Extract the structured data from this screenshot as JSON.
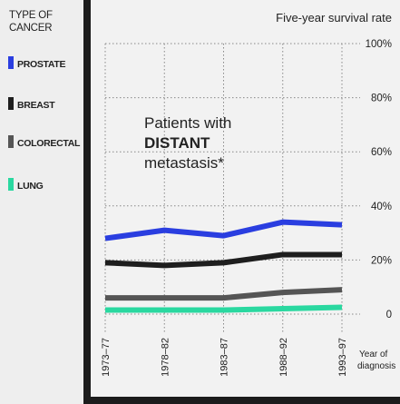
{
  "chart_data": {
    "type": "line",
    "title": "Five-year survival rate",
    "legend_title": [
      "TYPE OF",
      "CANCER"
    ],
    "legend_placement": "left",
    "x_axis_title": [
      "Year of",
      "diagnosis"
    ],
    "categories": [
      "1973–77",
      "1978–82",
      "1983–87",
      "1988–92",
      "1993–97"
    ],
    "y_ticks": [
      "0",
      "20%",
      "40%",
      "60%",
      "80%",
      "100%"
    ],
    "ylim": [
      0,
      100
    ],
    "grid": "vertical dotted",
    "annotation": {
      "line1": "Patients with",
      "line2": "DISTANT",
      "line3": "metastasis*"
    },
    "series": [
      {
        "name": "PROSTATE",
        "color": "#2a3ee0",
        "values": [
          28,
          31,
          29,
          34,
          33
        ]
      },
      {
        "name": "BREAST",
        "color": "#1e1e1e",
        "values": [
          19,
          18,
          19,
          22,
          22
        ]
      },
      {
        "name": "COLORECTAL",
        "color": "#555555",
        "values": [
          6,
          6,
          6,
          8,
          9
        ]
      },
      {
        "name": "LUNG",
        "color": "#2ad8a0",
        "values": [
          1.5,
          1.5,
          1.5,
          2,
          2.5
        ]
      }
    ]
  }
}
